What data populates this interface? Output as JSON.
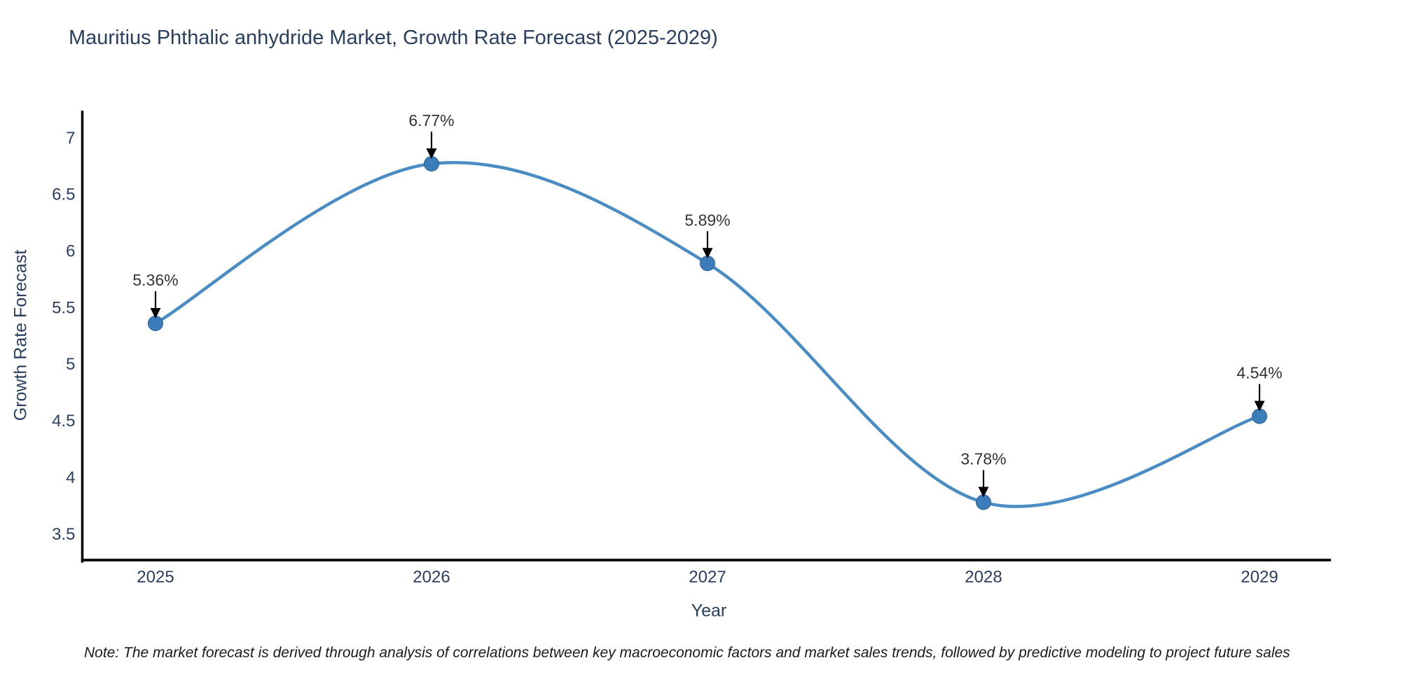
{
  "chart_data": {
    "type": "line",
    "title": "Mauritius Phthalic anhydride Market, Growth Rate Forecast (2025-2029)",
    "xlabel": "Year",
    "ylabel": "Growth Rate Forecast",
    "categories": [
      "2025",
      "2026",
      "2027",
      "2028",
      "2029"
    ],
    "series": [
      {
        "name": "Growth Rate Forecast",
        "values": [
          5.36,
          6.77,
          5.89,
          3.78,
          4.54
        ],
        "point_labels": [
          "5.36%",
          "6.77%",
          "5.89%",
          "3.78%",
          "4.54%"
        ]
      }
    ],
    "line_shape": "spline",
    "markers": true,
    "grid": false,
    "legend_position": "none",
    "ylim": [
      3.27,
      7.24
    ],
    "yticks": [
      3.5,
      4,
      4.5,
      5,
      5.5,
      6,
      6.5,
      7
    ],
    "colors": {
      "line": "#4a8cc4",
      "marker": "#3b7cba",
      "marker_edge": "#2a5f96",
      "axis_line": "#000000",
      "tick_text": "#2a3f5f",
      "annotation_text": "#333333",
      "arrow": "#000000"
    }
  },
  "note": "Note: The market forecast is derived through analysis of correlations between key macroeconomic factors and market sales trends, followed by predictive modeling to project future sales"
}
